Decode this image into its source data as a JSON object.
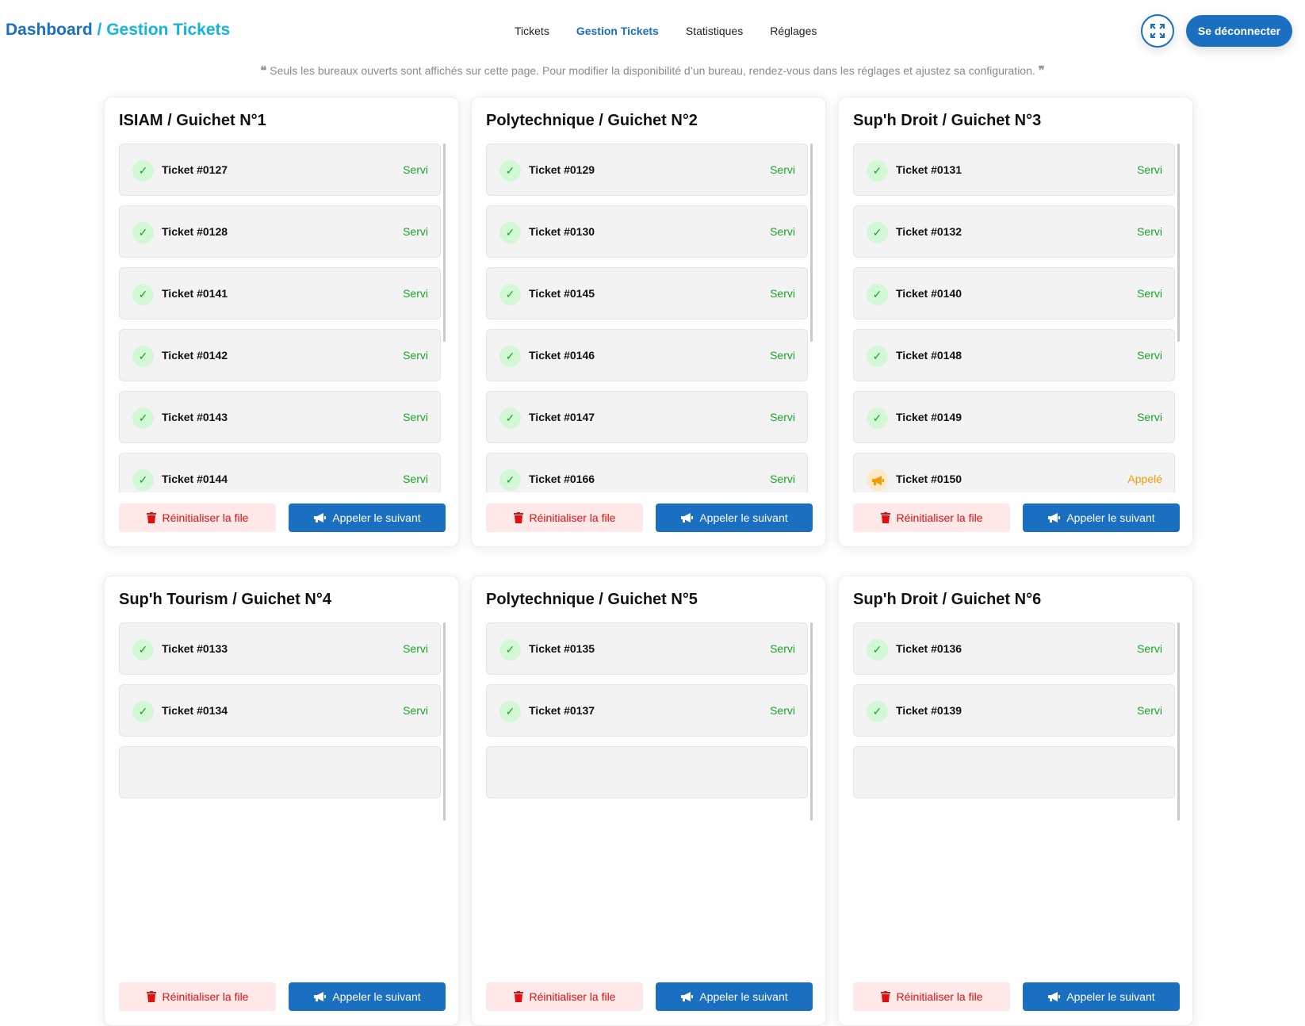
{
  "header": {
    "brand_a": "Dashboard",
    "brand_sep": " / ",
    "brand_b": "Gestion Tickets",
    "nav": [
      {
        "label": "Tickets",
        "active": false
      },
      {
        "label": "Gestion Tickets",
        "active": true
      },
      {
        "label": "Statistiques",
        "active": false
      },
      {
        "label": "Réglages",
        "active": false
      }
    ],
    "fullscreen_icon": "expand-icon",
    "logout": "Se déconnecter"
  },
  "notice": "Seuls les bureaux ouverts sont affichés sur cette page. Pour modifier la disponibilité d’un bureau, rendez-vous dans les réglages et ajustez sa configuration.",
  "colors": {
    "primary": "#1a6fc0",
    "served": "#1aa52a",
    "called": "#f59a00",
    "danger": "#e01010"
  },
  "reset_label": "Réinitialiser la file",
  "call_label": "Appeler le suivant",
  "cards": [
    {
      "title": "ISIAM / Guichet N°1",
      "tickets": [
        {
          "label": "Ticket #0127",
          "status": "Servi"
        },
        {
          "label": "Ticket #0128",
          "status": "Servi"
        },
        {
          "label": "Ticket #0141",
          "status": "Servi"
        },
        {
          "label": "Ticket #0142",
          "status": "Servi"
        },
        {
          "label": "Ticket #0143",
          "status": "Servi"
        },
        {
          "label": "Ticket #0144",
          "status": "Servi"
        }
      ]
    },
    {
      "title": "Polytechnique / Guichet N°2",
      "tickets": [
        {
          "label": "Ticket #0129",
          "status": "Servi"
        },
        {
          "label": "Ticket #0130",
          "status": "Servi"
        },
        {
          "label": "Ticket #0145",
          "status": "Servi"
        },
        {
          "label": "Ticket #0146",
          "status": "Servi"
        },
        {
          "label": "Ticket #0147",
          "status": "Servi"
        },
        {
          "label": "Ticket #0166",
          "status": "Servi"
        }
      ]
    },
    {
      "title": "Sup'h Droit / Guichet N°3",
      "tickets": [
        {
          "label": "Ticket #0131",
          "status": "Servi"
        },
        {
          "label": "Ticket #0132",
          "status": "Servi"
        },
        {
          "label": "Ticket #0140",
          "status": "Servi"
        },
        {
          "label": "Ticket #0148",
          "status": "Servi"
        },
        {
          "label": "Ticket #0149",
          "status": "Servi"
        },
        {
          "label": "Ticket #0150",
          "status": "Appelé"
        }
      ]
    },
    {
      "title": "Sup'h Tourism / Guichet N°4",
      "tickets": [
        {
          "label": "Ticket #0133",
          "status": "Servi"
        },
        {
          "label": "Ticket #0134",
          "status": "Servi"
        },
        {
          "label": "",
          "status": ""
        }
      ]
    },
    {
      "title": "Polytechnique / Guichet N°5",
      "tickets": [
        {
          "label": "Ticket #0135",
          "status": "Servi"
        },
        {
          "label": "Ticket #0137",
          "status": "Servi"
        },
        {
          "label": "",
          "status": ""
        }
      ]
    },
    {
      "title": "Sup'h Droit / Guichet N°6",
      "tickets": [
        {
          "label": "Ticket #0136",
          "status": "Servi"
        },
        {
          "label": "Ticket #0139",
          "status": "Servi"
        },
        {
          "label": "",
          "status": ""
        }
      ]
    }
  ]
}
